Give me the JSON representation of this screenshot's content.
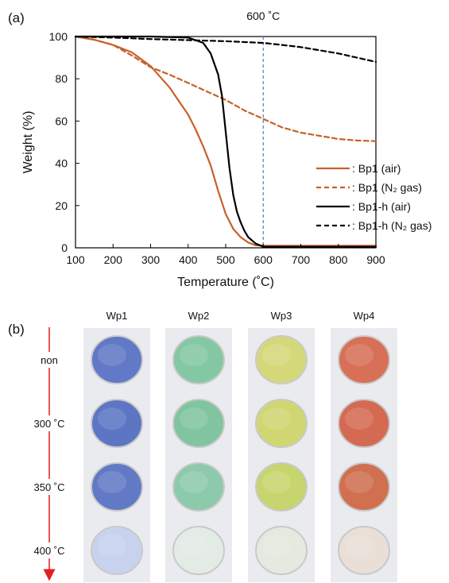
{
  "panels": {
    "a_label": "(a)",
    "b_label": "(b)"
  },
  "chart_data": {
    "type": "line",
    "xlabel": "Temperature (˚C)",
    "ylabel": "Weight (%)",
    "xlim": [
      100,
      900
    ],
    "ylim": [
      0,
      100
    ],
    "xticks": [
      100,
      200,
      300,
      400,
      500,
      600,
      700,
      800,
      900
    ],
    "yticks": [
      0,
      20,
      40,
      60,
      80,
      100
    ],
    "grid": false,
    "legend_position": "bottom-right",
    "annotation": {
      "text": "600 ˚C",
      "x": 600
    },
    "colors": {
      "orange": "#c8602a",
      "black": "#000000",
      "annotation_line": "#4a7fd0"
    },
    "series": [
      {
        "name": ": Bp1 (air)",
        "style": "solid",
        "color": "#c8602a",
        "x": [
          100,
          150,
          200,
          250,
          300,
          350,
          400,
          420,
          440,
          460,
          480,
          500,
          520,
          540,
          560,
          580,
          600,
          650,
          700,
          800,
          900
        ],
        "y": [
          100,
          98.5,
          96,
          92.5,
          86,
          76,
          63,
          56,
          48,
          39,
          27,
          16,
          9,
          5,
          2.5,
          1.2,
          1,
          1,
          1,
          1,
          1
        ]
      },
      {
        "name": ": Bp1 (N₂ gas)",
        "style": "dashed",
        "color": "#c8602a",
        "x": [
          100,
          150,
          200,
          250,
          300,
          350,
          400,
          450,
          500,
          550,
          600,
          650,
          700,
          750,
          800,
          850,
          900
        ],
        "y": [
          100,
          98.5,
          96,
          91,
          85.5,
          82,
          78,
          74,
          70,
          65,
          61,
          57,
          54.5,
          53,
          51.5,
          50.8,
          50.5
        ]
      },
      {
        "name": ": Bp1-h (air)",
        "style": "solid",
        "color": "#000000",
        "x": [
          100,
          200,
          300,
          400,
          440,
          460,
          480,
          490,
          500,
          510,
          520,
          530,
          540,
          550,
          560,
          580,
          600,
          700,
          900
        ],
        "y": [
          100,
          100,
          100,
          99.5,
          97,
          92,
          82,
          72,
          55,
          38,
          25,
          17,
          12,
          8,
          5,
          2,
          0.5,
          0.5,
          0.5
        ]
      },
      {
        "name": ": Bp1-h (N₂ gas)",
        "style": "dashed",
        "color": "#000000",
        "x": [
          100,
          200,
          300,
          400,
          500,
          600,
          650,
          700,
          750,
          800,
          850,
          900
        ],
        "y": [
          100,
          99.5,
          98.8,
          98.3,
          97.8,
          97,
          96,
          95,
          93.5,
          92,
          90,
          88
        ]
      }
    ]
  },
  "photo_grid": {
    "columns": [
      "Wp1",
      "Wp2",
      "Wp3",
      "Wp4"
    ],
    "rows": [
      "non",
      "300 ˚C",
      "350 ˚C",
      "400 ˚C"
    ],
    "arrow_color": "#e41e1e",
    "swatch_colors": [
      [
        "#5a73c4",
        "#7fc7a0",
        "#d4d873",
        "#d86a50"
      ],
      [
        "#5670c2",
        "#7cc29c",
        "#cfd66c",
        "#d4644b"
      ],
      [
        "#5b74c4",
        "#89c9a8",
        "#c6d468",
        "#cf6a48"
      ],
      [
        "#c6d2ee",
        "#e3ece5",
        "#e5e9df",
        "#eadfd6"
      ]
    ]
  }
}
